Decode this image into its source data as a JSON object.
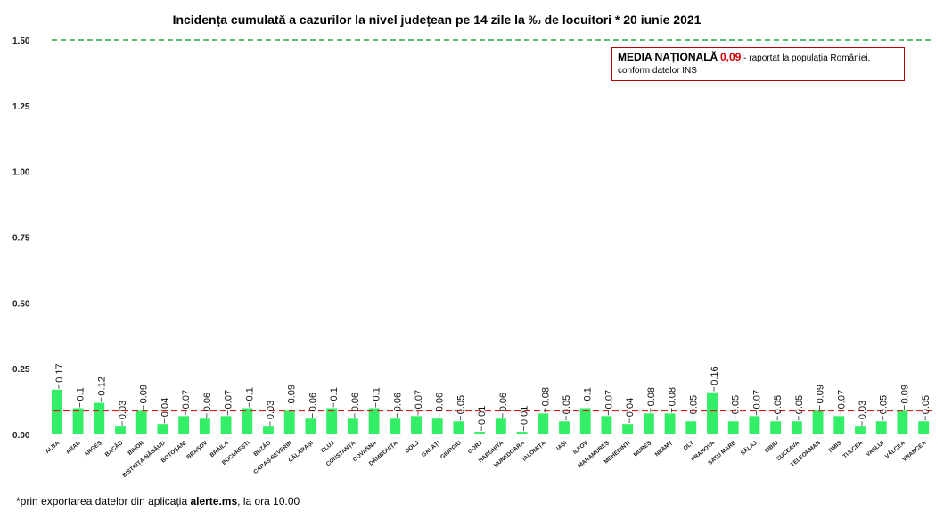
{
  "chart_data": {
    "type": "bar",
    "title": "Incidența cumulată a cazurilor la nivel județean pe 14 zile la ‰ de locuitori *  20 iunie 2021",
    "categories": [
      "ALBA",
      "ARAD",
      "ARGEȘ",
      "BACĂU",
      "BIHOR",
      "BISTRIȚA-NĂSĂUD",
      "BOTOȘANI",
      "BRAȘOV",
      "BRĂILA",
      "BUCUREȘTI",
      "BUZĂU",
      "CARAȘ-SEVERIN",
      "CĂLĂRAȘI",
      "CLUJ",
      "CONSTANȚA",
      "COVASNA",
      "DÂMBOVIȚA",
      "DOLJ",
      "GALAȚI",
      "GIURGIU",
      "GORJ",
      "HARGHITA",
      "HUNEDOARA",
      "IALOMIȚA",
      "IAȘI",
      "ILFOV",
      "MARAMUREȘ",
      "MEHEDINȚI",
      "MUREȘ",
      "NEAMȚ",
      "OLT",
      "PRAHOVA",
      "SATU MARE",
      "SĂLAJ",
      "SIBIU",
      "SUCEAVA",
      "TELEORMAN",
      "TIMIȘ",
      "TULCEA",
      "VASLUI",
      "VÂLCEA",
      "VRANCEA"
    ],
    "values": [
      0.17,
      0.1,
      0.12,
      0.03,
      0.09,
      0.04,
      0.07,
      0.06,
      0.07,
      0.1,
      0.03,
      0.09,
      0.06,
      0.1,
      0.06,
      0.1,
      0.06,
      0.07,
      0.06,
      0.05,
      0.01,
      0.06,
      0.01,
      0.08,
      0.05,
      0.1,
      0.07,
      0.04,
      0.08,
      0.08,
      0.05,
      0.16,
      0.05,
      0.07,
      0.05,
      0.05,
      0.09,
      0.07,
      0.03,
      0.05,
      0.09,
      0.05
    ],
    "value_labels": [
      "0.17",
      "0.1",
      "0.12",
      "0.03",
      "0.09",
      "0.04",
      "0.07",
      "0.06",
      "0.07",
      "0.1",
      "0.03",
      "0.09",
      "0.06",
      "0.1",
      "0.06",
      "0.1",
      "0.06",
      "0.07",
      "0.06",
      "0.05",
      "0.01",
      "0.06",
      "0.01",
      "0.08",
      "0.05",
      "0.1",
      "0.07",
      "0.04",
      "0.08",
      "0.08",
      "0.05",
      "0.16",
      "0.05",
      "0.07",
      "0.05",
      "0.05",
      "0.09",
      "0.07",
      "0.03",
      "0.05",
      "0.09",
      "0.05"
    ],
    "yticks": [
      "0.00",
      "0.25",
      "0.50",
      "0.75",
      "1.00",
      "1.25",
      "1.50"
    ],
    "ylim": [
      0,
      1.5
    ],
    "threshold": 1.5,
    "national_average": 0.09,
    "grid": false,
    "legend_position": "top-right",
    "colors": {
      "bar": "#33ee66",
      "average_line": "#d02020",
      "threshold_line": "#22aa44"
    }
  },
  "legend": {
    "heading": "MEDIA NAȚIONALĂ",
    "value": "0,09",
    "text_1": " - raportat la populația României,",
    "text_2": "conform datelor INS"
  },
  "footnote": {
    "prefix": "*prin exportarea datelor din aplicația ",
    "bold": "alerte.ms",
    "suffix": ", la ora 10.00"
  }
}
